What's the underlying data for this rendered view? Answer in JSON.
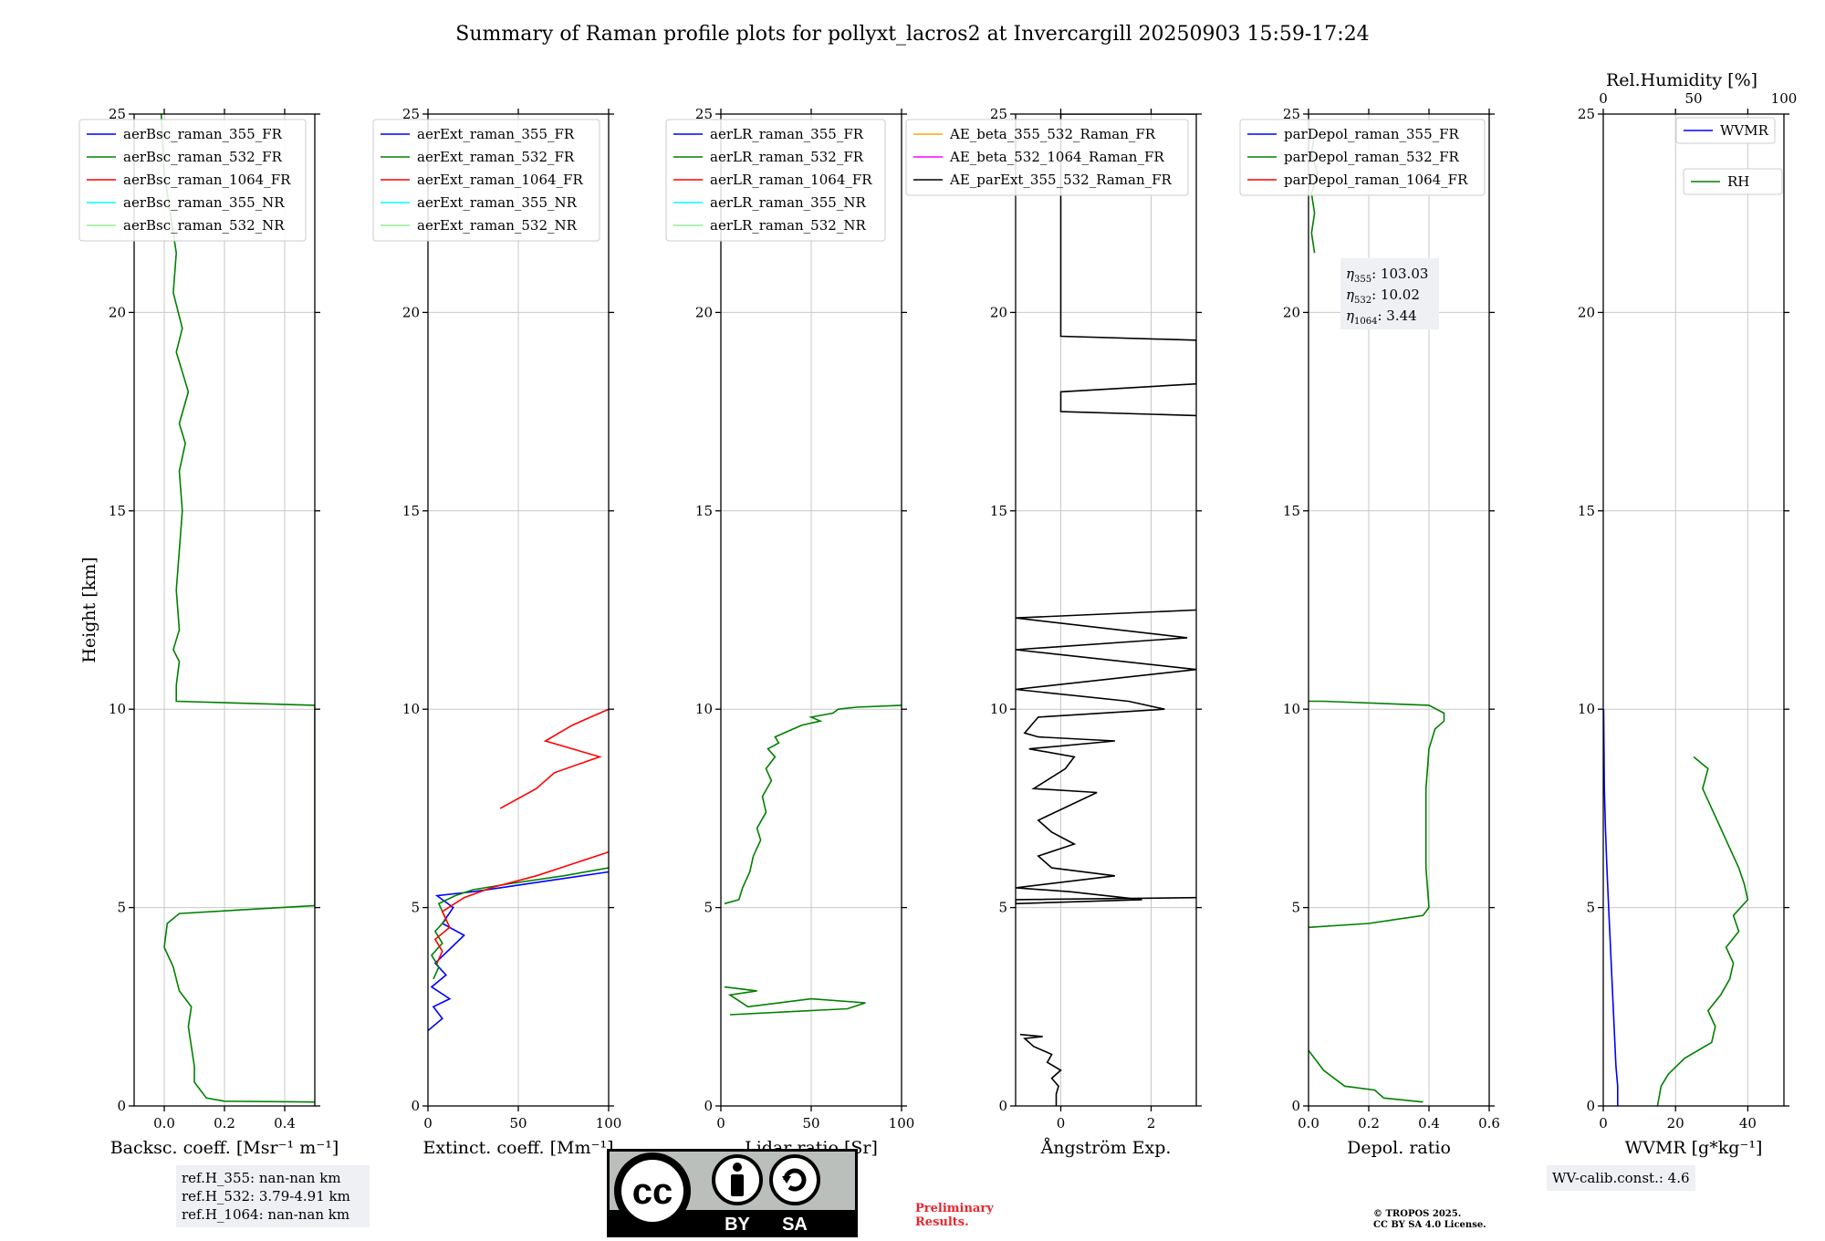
{
  "title": "Summary of Raman profile plots for pollyxt_lacros2 at Invercargill 20250903 15:59-17:24",
  "colors": {
    "c355": "#0000ff",
    "c532": "#008000",
    "c1064": "#ff0000",
    "c355nr": "#00ffff",
    "c532nr": "#90ee90",
    "orange": "#ffa500",
    "magenta": "#ff00ff",
    "black": "#000000",
    "grid": "#c8c8c8"
  },
  "chart_data": [
    {
      "type": "line",
      "id": "bsc",
      "xlabel": "Backsc. coeff. [Msr⁻¹ m⁻¹]",
      "ylabel": "Height [km]",
      "xlim": [
        -0.1,
        0.5
      ],
      "ylim": [
        0,
        25
      ],
      "xticks": [
        0.0,
        0.2,
        0.4
      ],
      "xtick_labels": [
        "0.0",
        "0.2",
        "0.4"
      ],
      "yticks": [
        0,
        5,
        10,
        15,
        20,
        25
      ],
      "ytick_labels": [
        "0",
        "5",
        "10",
        "15",
        "20",
        "25"
      ],
      "legend": [
        "aerBsc_raman_355_FR",
        "aerBsc_raman_532_FR",
        "aerBsc_raman_1064_FR",
        "aerBsc_raman_355_NR",
        "aerBsc_raman_532_NR"
      ],
      "series": [
        {
          "name": "aerBsc_raman_532_FR",
          "color": "#008000",
          "x": [
            0.5,
            0.2,
            0.14,
            0.12,
            0.1,
            0.1,
            0.08,
            0.09,
            0.05,
            0.03,
            0.0,
            0.01,
            0.05,
            0.5,
            0.5,
            0.04,
            0.04,
            0.05,
            0.03,
            0.05,
            0.04,
            0.05,
            0.06,
            0.05,
            0.07,
            0.05,
            0.08,
            0.04,
            0.06,
            0.03,
            0.04,
            0.02,
            0.0,
            -0.01
          ],
          "y": [
            0.1,
            0.12,
            0.2,
            0.4,
            0.6,
            1.0,
            2.0,
            2.5,
            2.9,
            3.5,
            4.0,
            4.6,
            4.85,
            5.05,
            10.1,
            10.2,
            10.6,
            11.2,
            11.5,
            12.0,
            13.0,
            14.0,
            15.0,
            16.0,
            16.7,
            17.2,
            18.0,
            19.0,
            19.6,
            20.5,
            21.5,
            22.5,
            23.5,
            25.0
          ]
        }
      ]
    },
    {
      "type": "line",
      "id": "ext",
      "xlabel": "Extinct. coeff. [Mm⁻¹]",
      "xlim": [
        0,
        100
      ],
      "ylim": [
        0,
        25
      ],
      "xticks": [
        0,
        50,
        100
      ],
      "xtick_labels": [
        "0",
        "50",
        "100"
      ],
      "yticks": [
        0,
        5,
        10,
        15,
        20,
        25
      ],
      "ytick_labels": [
        "0",
        "5",
        "10",
        "15",
        "20",
        "25"
      ],
      "legend": [
        "aerExt_raman_355_FR",
        "aerExt_raman_532_FR",
        "aerExt_raman_1064_FR",
        "aerExt_raman_355_NR",
        "aerExt_raman_532_NR"
      ],
      "series": [
        {
          "name": "aerExt_raman_355_FR",
          "color": "#0000ff",
          "x": [
            0,
            8,
            3,
            12,
            2,
            10,
            4,
            20,
            8,
            14,
            5,
            25,
            40,
            70,
            100
          ],
          "y": [
            1.9,
            2.2,
            2.5,
            2.7,
            3.0,
            3.3,
            3.6,
            4.3,
            4.6,
            5.0,
            5.3,
            5.4,
            5.5,
            5.7,
            5.9
          ]
        },
        {
          "name": "aerExt_raman_532_FR",
          "color": "#008000",
          "x": [
            3,
            6,
            2,
            8,
            4,
            10,
            6,
            15,
            25,
            45,
            75,
            100
          ],
          "y": [
            3.2,
            3.5,
            3.8,
            4.1,
            4.4,
            4.7,
            5.1,
            5.3,
            5.45,
            5.6,
            5.8,
            6.0
          ]
        },
        {
          "name": "aerExt_raman_1064_FR",
          "color": "#ff0000",
          "x": [
            5,
            8,
            4,
            12,
            8,
            20,
            35,
            60,
            100,
            null,
            40,
            60,
            70,
            95,
            65,
            80,
            100
          ],
          "y": [
            3.6,
            3.9,
            4.2,
            4.5,
            4.9,
            5.25,
            5.5,
            5.8,
            6.4,
            null,
            7.5,
            8.0,
            8.4,
            8.8,
            9.2,
            9.6,
            10.0
          ]
        }
      ]
    },
    {
      "type": "line",
      "id": "lr",
      "xlabel": "Lidar ratio [Sr]",
      "xlim": [
        0,
        100
      ],
      "ylim": [
        0,
        25
      ],
      "xticks": [
        0,
        50,
        100
      ],
      "xtick_labels": [
        "0",
        "50",
        "100"
      ],
      "yticks": [
        0,
        5,
        10,
        15,
        20,
        25
      ],
      "ytick_labels": [
        "0",
        "5",
        "10",
        "15",
        "20",
        "25"
      ],
      "legend": [
        "aerLR_raman_355_FR",
        "aerLR_raman_532_FR",
        "aerLR_raman_1064_FR",
        "aerLR_raman_355_NR",
        "aerLR_raman_532_NR"
      ],
      "series": [
        {
          "name": "aerLR_raman_532_FR",
          "color": "#008000",
          "x": [
            2,
            10,
            12,
            16,
            18,
            22,
            20,
            25,
            23,
            28,
            25,
            30,
            26,
            32,
            30,
            40,
            45,
            55,
            50,
            62,
            65,
            75,
            100
          ],
          "y": [
            5.1,
            5.2,
            5.5,
            5.9,
            6.3,
            6.7,
            7.0,
            7.4,
            7.8,
            8.2,
            8.5,
            8.8,
            9.0,
            9.15,
            9.3,
            9.5,
            9.6,
            9.7,
            9.8,
            9.9,
            10.0,
            10.05,
            10.1
          ]
        },
        {
          "name": "aerLR_raman_532_FR_low",
          "color": "#008000",
          "x": [
            5,
            70,
            80,
            50,
            15,
            5,
            20,
            2
          ],
          "y": [
            2.3,
            2.45,
            2.6,
            2.7,
            2.5,
            2.8,
            2.9,
            3.0
          ]
        }
      ]
    },
    {
      "type": "line",
      "id": "ae",
      "xlabel": "Ångström Exp.",
      "xlim": [
        -1,
        3
      ],
      "ylim": [
        0,
        25
      ],
      "xticks": [
        0,
        2
      ],
      "xtick_labels": [
        "0",
        "2"
      ],
      "yticks": [
        0,
        5,
        10,
        15,
        20,
        25
      ],
      "ytick_labels": [
        "0",
        "5",
        "10",
        "15",
        "20",
        "25"
      ],
      "legend": [
        "AE_beta_355_532_Raman_FR",
        "AE_beta_532_1064_Raman_FR",
        "AE_parExt_355_532_Raman_FR"
      ],
      "series": [
        {
          "name": "AE_parExt_355_532_Raman_FR",
          "color": "#000000",
          "x": [
            -0.1,
            -0.1,
            -0.05,
            -0.2,
            0.0,
            -0.3,
            -0.2,
            -0.6,
            -0.7,
            -0.8,
            -0.4,
            -0.9
          ],
          "y": [
            0.0,
            0.3,
            0.5,
            0.7,
            0.9,
            1.1,
            1.3,
            1.5,
            1.6,
            1.7,
            1.75,
            1.8
          ]
        },
        {
          "name": "AE_parExt_355_532_Raman_FR_mid",
          "color": "#000000",
          "x": [
            3,
            -1,
            -1,
            1.8,
            0.2,
            -1,
            1.2,
            -0.2,
            -0.5,
            0.3,
            -0.2,
            -0.5,
            0.8,
            -0.6,
            0.1,
            0.3,
            -0.7,
            1.2,
            -0.5,
            -0.8,
            -0.5,
            2.3,
            1.5,
            -1,
            3,
            -1,
            2.8,
            -1,
            3
          ],
          "y": [
            5.25,
            5.2,
            5.1,
            5.2,
            5.4,
            5.5,
            5.8,
            6.0,
            6.3,
            6.6,
            6.9,
            7.2,
            7.9,
            8.0,
            8.5,
            8.8,
            9.0,
            9.2,
            9.3,
            9.4,
            9.8,
            10.0,
            10.2,
            10.5,
            11.0,
            11.5,
            11.8,
            12.3,
            12.5
          ]
        },
        {
          "name": "AE_parExt_355_532_Raman_FR_top",
          "color": "#000000",
          "x": [
            3,
            0,
            0,
            3,
            3,
            0,
            0,
            3
          ],
          "y": [
            17.4,
            17.5,
            18.0,
            18.2,
            19.3,
            19.4,
            25.0,
            25.0
          ]
        }
      ]
    },
    {
      "type": "line",
      "id": "depol",
      "xlabel": "Depol. ratio",
      "xlim": [
        0,
        0.6
      ],
      "ylim": [
        0,
        25
      ],
      "xticks": [
        0.0,
        0.2,
        0.4,
        0.6
      ],
      "xtick_labels": [
        "0.0",
        "0.2",
        "0.4",
        "0.6"
      ],
      "yticks": [
        0,
        5,
        10,
        15,
        20,
        25
      ],
      "ytick_labels": [
        "0",
        "5",
        "10",
        "15",
        "20",
        "25"
      ],
      "legend": [
        "parDepol_raman_355_FR",
        "parDepol_raman_532_FR",
        "parDepol_raman_1064_FR"
      ],
      "annotations": [
        {
          "symbol": "η",
          "sub": "355",
          "value": ": 103.03"
        },
        {
          "symbol": "η",
          "sub": "532",
          "value": ": 10.02"
        },
        {
          "symbol": "η",
          "sub": "1064",
          "value": ": 3.44"
        }
      ],
      "series": [
        {
          "name": "parDepol_raman_532_FR",
          "color": "#008000",
          "x": [
            0.38,
            0.25,
            0.22,
            0.12,
            0.05,
            0.0,
            null,
            0.0,
            0.2,
            0.38,
            0.4,
            0.39,
            0.39,
            0.4,
            0.42,
            0.45,
            0.45,
            0.4,
            0.05,
            0.0
          ],
          "y": [
            0.1,
            0.2,
            0.4,
            0.5,
            0.9,
            1.4,
            null,
            4.5,
            4.6,
            4.8,
            5.0,
            6.0,
            8.0,
            9.0,
            9.5,
            9.7,
            9.9,
            10.1,
            10.2,
            10.2
          ]
        },
        {
          "name": "parDepol_raman_532_FR_top",
          "color": "#008000",
          "x": [
            0.02,
            0.01,
            0.02,
            0.01,
            0.03,
            0.01,
            0.02
          ],
          "y": [
            21.5,
            22.0,
            22.5,
            23.0,
            23.5,
            24.0,
            24.5
          ]
        }
      ]
    },
    {
      "type": "line",
      "id": "wv",
      "xlabel": "WVMR [g*kg⁻¹]",
      "x2label": "Rel.Humidity [%]",
      "xlim": [
        0,
        50
      ],
      "x2lim": [
        0,
        100
      ],
      "ylim": [
        0,
        25
      ],
      "xticks": [
        0,
        20,
        40
      ],
      "xtick_labels": [
        "0",
        "20",
        "40"
      ],
      "x2ticks": [
        0,
        50,
        100
      ],
      "x2tick_labels": [
        "0",
        "50",
        "100"
      ],
      "yticks": [
        0,
        5,
        10,
        15,
        20,
        25
      ],
      "ytick_labels": [
        "0",
        "5",
        "10",
        "15",
        "20",
        "25"
      ],
      "legend": [
        "WVMR",
        "RH"
      ],
      "series": [
        {
          "name": "WVMR",
          "color": "#0000ff",
          "x": [
            4,
            4,
            3.5,
            3,
            2.5,
            2,
            1.5,
            1.0,
            0.6,
            0.3,
            0.2,
            0.1
          ],
          "y": [
            0.0,
            0.5,
            1.0,
            2.0,
            3.0,
            4.0,
            5.0,
            6.0,
            7.0,
            8.0,
            9.0,
            10.0
          ]
        },
        {
          "name": "RH",
          "color": "#008000",
          "x": [
            30,
            32,
            36,
            45,
            60,
            62,
            58,
            65,
            70,
            72,
            68,
            75,
            72,
            80,
            78,
            75,
            70,
            65,
            60,
            55,
            58,
            50
          ],
          "y": [
            0.0,
            0.5,
            0.8,
            1.2,
            1.6,
            2.0,
            2.4,
            2.8,
            3.2,
            3.6,
            4.0,
            4.4,
            4.8,
            5.2,
            5.6,
            6.0,
            6.5,
            7.0,
            7.5,
            8.0,
            8.5,
            8.8
          ]
        }
      ]
    }
  ],
  "notes": {
    "refh": [
      "ref.H_355: nan-nan km",
      "ref.H_532: 3.79-4.91 km",
      "ref.H_1064: nan-nan km"
    ],
    "wvcal": "WV-calib.const.: 4.6",
    "prelim": [
      "Preliminary",
      "Results."
    ],
    "copyright": [
      "© TROPOS 2025.",
      "CC BY SA 4.0 License."
    ],
    "cc_by": "BY",
    "cc_sa": "SA",
    "cc_logo": "cc"
  }
}
